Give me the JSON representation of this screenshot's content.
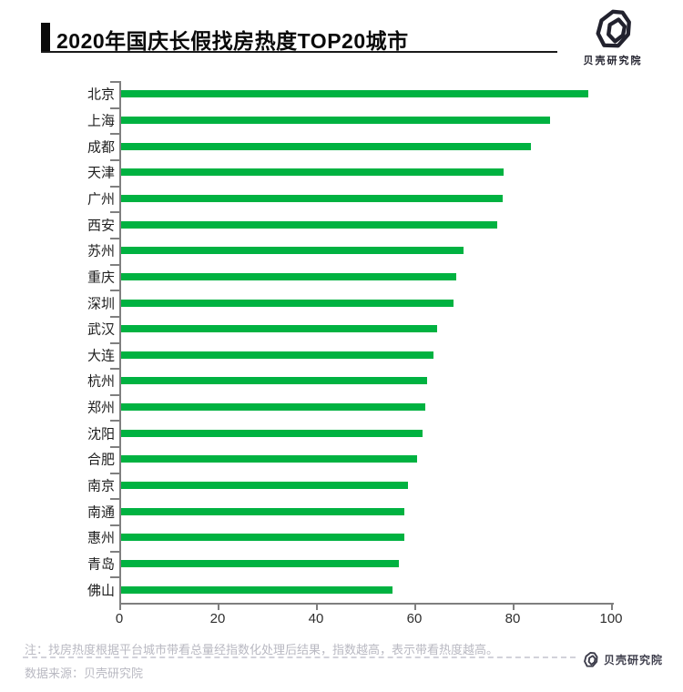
{
  "header": {
    "title": "2020年国庆长假找房热度TOP20城市",
    "brand": "贝壳研究院"
  },
  "chart_data": {
    "type": "bar",
    "orientation": "horizontal",
    "title": "2020年国庆长假找房热度TOP20城市",
    "categories": [
      "北京",
      "上海",
      "成都",
      "天津",
      "广州",
      "西安",
      "苏州",
      "重庆",
      "深圳",
      "武汉",
      "大连",
      "杭州",
      "郑州",
      "沈阳",
      "合肥",
      "南京",
      "南通",
      "惠州",
      "青岛",
      "佛山"
    ],
    "values": [
      95.0,
      87.3,
      83.3,
      77.8,
      77.5,
      76.5,
      69.6,
      68.2,
      67.5,
      64.3,
      63.6,
      62.3,
      61.9,
      61.3,
      60.1,
      58.4,
      57.6,
      57.6,
      56.5,
      55.2
    ],
    "x_ticks": [
      0,
      20,
      40,
      60,
      80,
      100
    ],
    "xlim": [
      0,
      100
    ],
    "xlabel": "",
    "ylabel": "",
    "grid": false,
    "legend": "none",
    "bar_color": "#00B241",
    "axis_color": "#7f7f7f"
  },
  "footer": {
    "note": "注：找房热度根据平台城市带看总量经指数化处理后结果，指数越高，表示带看热度越高。",
    "source": "数据来源：贝壳研究院",
    "brand": "贝壳研究院"
  },
  "colors": {
    "bar_green": "#00B241",
    "title_black": "#0a0a0a",
    "axis_gray": "#7f7f7f",
    "note_gray": "#b9b9c2",
    "brand_dark": "#22222e"
  }
}
